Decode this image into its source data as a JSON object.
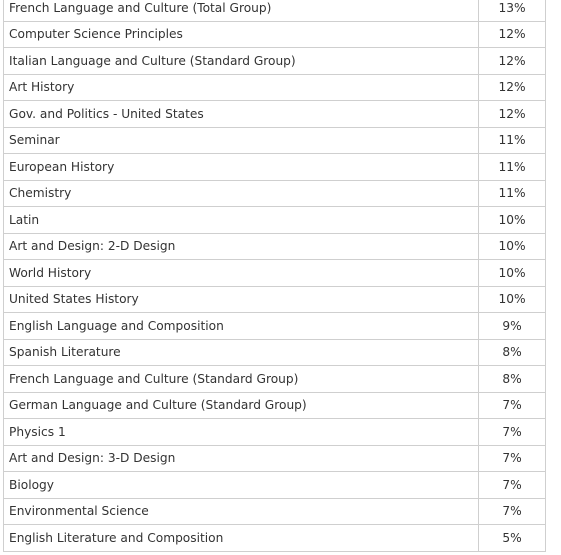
{
  "rows": [
    {
      "subject": "French Language and Culture (Total Group)",
      "percent": "13%"
    },
    {
      "subject": "Computer Science Principles",
      "percent": "12%"
    },
    {
      "subject": "Italian Language and Culture (Standard Group)",
      "percent": "12%"
    },
    {
      "subject": "Art History",
      "percent": "12%"
    },
    {
      "subject": "Gov. and Politics - United States",
      "percent": "12%"
    },
    {
      "subject": "Seminar",
      "percent": "11%"
    },
    {
      "subject": "European History",
      "percent": "11%"
    },
    {
      "subject": "Chemistry",
      "percent": "11%"
    },
    {
      "subject": "Latin",
      "percent": "10%"
    },
    {
      "subject": "Art and Design: 2-D Design",
      "percent": "10%"
    },
    {
      "subject": "World History",
      "percent": "10%"
    },
    {
      "subject": "United States History",
      "percent": "10%"
    },
    {
      "subject": "English Language and Composition",
      "percent": "9%"
    },
    {
      "subject": "Spanish Literature",
      "percent": "8%"
    },
    {
      "subject": "French Language and Culture (Standard Group)",
      "percent": "8%"
    },
    {
      "subject": "German Language and Culture (Standard Group)",
      "percent": "7%"
    },
    {
      "subject": "Physics 1",
      "percent": "7%"
    },
    {
      "subject": "Art and Design: 3-D Design",
      "percent": "7%"
    },
    {
      "subject": "Biology",
      "percent": "7%"
    },
    {
      "subject": "Environmental Science",
      "percent": "7%"
    },
    {
      "subject": "English Literature and Composition",
      "percent": "5%"
    }
  ]
}
